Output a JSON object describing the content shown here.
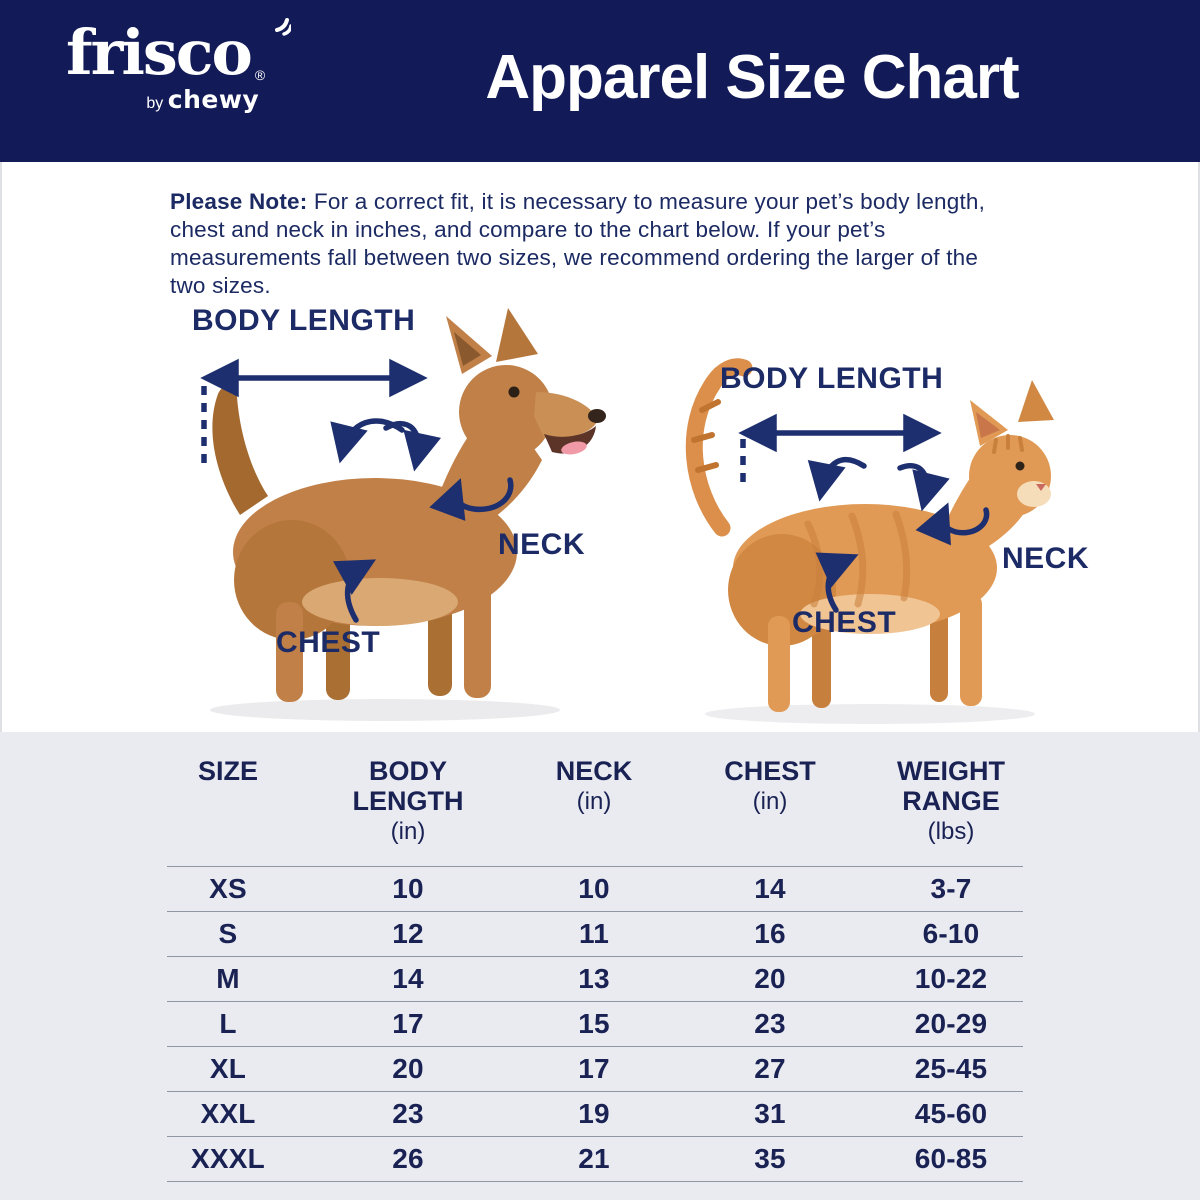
{
  "header": {
    "logo": {
      "brand": "frisco",
      "registered": "®",
      "byline_by": "by",
      "byline_brand": "chewy"
    },
    "title": "Apparel Size Chart"
  },
  "note": {
    "label": "Please Note:",
    "text": "For a correct fit, it is necessary to measure your pet’s body length, chest and neck in inches, and compare to the chart below. If your pet’s measurements fall between two sizes, we recommend ordering the larger of the two sizes."
  },
  "figures": {
    "dog": {
      "animal": "dog",
      "body_length_label": "BODY LENGTH",
      "neck_label": "NECK",
      "chest_label": "CHEST"
    },
    "cat": {
      "animal": "cat",
      "body_length_label": "BODY LENGTH",
      "neck_label": "NECK",
      "chest_label": "CHEST"
    }
  },
  "table": {
    "columns": [
      {
        "title": "SIZE",
        "unit": ""
      },
      {
        "title": "BODY LENGTH",
        "unit": "(in)"
      },
      {
        "title": "NECK",
        "unit": "(in)"
      },
      {
        "title": "CHEST",
        "unit": "(in)"
      },
      {
        "title": "WEIGHT RANGE",
        "unit": "(lbs)"
      }
    ],
    "rows": [
      [
        "XS",
        "10",
        "10",
        "14",
        "3-7"
      ],
      [
        "S",
        "12",
        "11",
        "16",
        "6-10"
      ],
      [
        "M",
        "14",
        "13",
        "20",
        "10-22"
      ],
      [
        "L",
        "17",
        "15",
        "23",
        "20-29"
      ],
      [
        "XL",
        "20",
        "17",
        "27",
        "25-45"
      ],
      [
        "XXL",
        "23",
        "19",
        "31",
        "45-60"
      ],
      [
        "XXXL",
        "26",
        "21",
        "35",
        "60-85"
      ]
    ]
  },
  "colors": {
    "header_navy": "#121b57",
    "text_navy": "#1c2a63",
    "table_text_navy": "#1a2254",
    "annotation_navy": "#1d2f6e",
    "table_background": "#e9ebf1",
    "divider_gray": "#9097a4",
    "dog_tan": "#c08048",
    "cat_orange": "#e09a55",
    "white": "#ffffff"
  }
}
